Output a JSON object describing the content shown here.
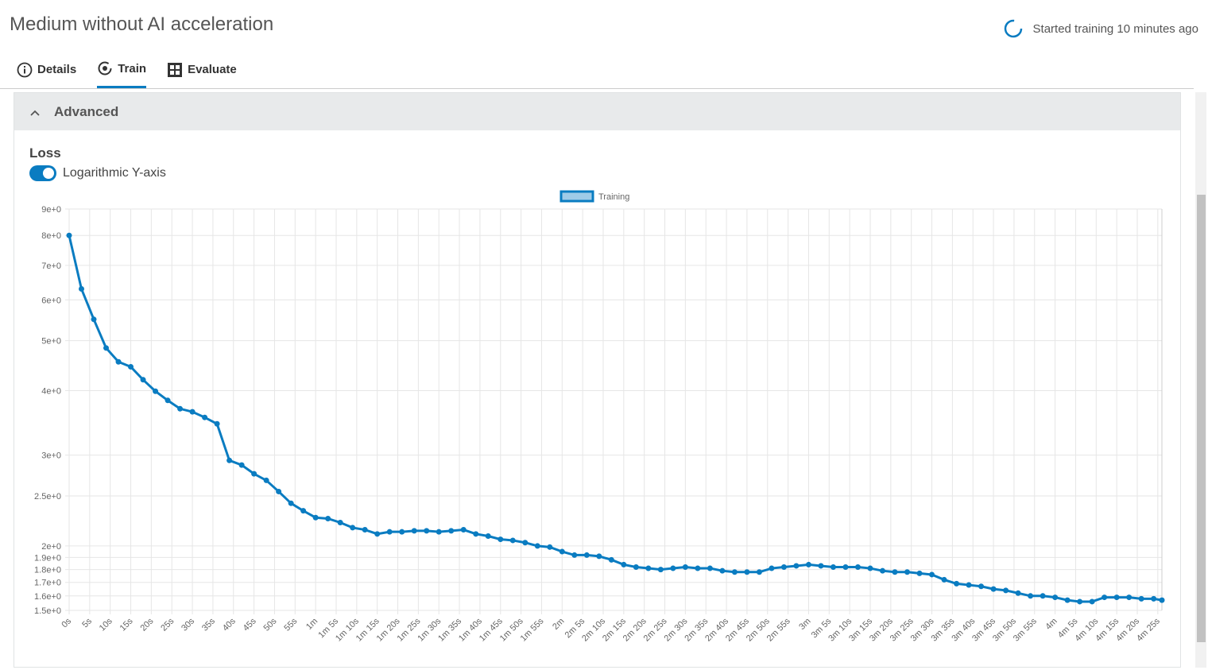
{
  "header": {
    "title": "Medium without AI acceleration",
    "status": "Started training 10 minutes ago"
  },
  "tabs": [
    "Details",
    "Train",
    "Evaluate"
  ],
  "section": {
    "title": "Advanced",
    "chart_title": "Loss",
    "toggle_label": "Logarithmic Y-axis"
  },
  "chart_data": {
    "type": "line",
    "log_y": true,
    "grid": true,
    "legend": "top",
    "series": [
      {
        "name": "Training",
        "color": "#0a7cc1",
        "values": [
          8.0,
          6.3,
          5.5,
          4.84,
          4.55,
          4.45,
          4.2,
          3.99,
          3.83,
          3.69,
          3.64,
          3.55,
          3.45,
          2.93,
          2.87,
          2.76,
          2.68,
          2.55,
          2.42,
          2.34,
          2.27,
          2.26,
          2.22,
          2.17,
          2.15,
          2.11,
          2.13,
          2.13,
          2.14,
          2.14,
          2.13,
          2.14,
          2.15,
          2.11,
          2.09,
          2.06,
          2.05,
          2.03,
          2.0,
          1.99,
          1.95,
          1.92,
          1.92,
          1.91,
          1.88,
          1.84,
          1.82,
          1.81,
          1.8,
          1.81,
          1.82,
          1.81,
          1.81,
          1.79,
          1.78,
          1.78,
          1.78,
          1.81,
          1.82,
          1.83,
          1.84,
          1.83,
          1.82,
          1.82,
          1.82,
          1.81,
          1.79,
          1.78,
          1.78,
          1.77,
          1.76,
          1.72,
          1.69,
          1.68,
          1.67,
          1.65,
          1.64,
          1.62,
          1.6,
          1.6,
          1.59,
          1.57,
          1.56,
          1.56,
          1.59,
          1.59,
          1.59,
          1.58,
          1.58,
          1.57
        ]
      }
    ],
    "x": [
      0,
      3,
      6,
      9,
      12,
      15,
      18,
      21,
      24,
      27,
      30,
      33,
      36,
      39,
      42,
      45,
      48,
      51,
      54,
      57,
      60,
      63,
      66,
      69,
      72,
      75,
      78,
      81,
      84,
      87,
      90,
      93,
      96,
      99,
      102,
      105,
      108,
      111,
      114,
      117,
      120,
      123,
      126,
      129,
      132,
      135,
      138,
      141,
      144,
      147,
      150,
      153,
      156,
      159,
      162,
      165,
      168,
      171,
      174,
      177,
      180,
      183,
      186,
      189,
      192,
      195,
      198,
      201,
      204,
      207,
      210,
      213,
      216,
      219,
      222,
      225,
      228,
      231,
      234,
      237,
      240,
      243,
      246,
      249,
      252,
      255,
      258,
      261,
      264,
      266
    ],
    "xlim": [
      0,
      266
    ],
    "xticks": [
      {
        "value": 0,
        "label": "0s"
      },
      {
        "value": 5,
        "label": "5s"
      },
      {
        "value": 10,
        "label": "10s"
      },
      {
        "value": 15,
        "label": "15s"
      },
      {
        "value": 20,
        "label": "20s"
      },
      {
        "value": 25,
        "label": "25s"
      },
      {
        "value": 30,
        "label": "30s"
      },
      {
        "value": 35,
        "label": "35s"
      },
      {
        "value": 40,
        "label": "40s"
      },
      {
        "value": 45,
        "label": "45s"
      },
      {
        "value": 50,
        "label": "50s"
      },
      {
        "value": 55,
        "label": "55s"
      },
      {
        "value": 60,
        "label": "1m"
      },
      {
        "value": 65,
        "label": "1m 5s"
      },
      {
        "value": 70,
        "label": "1m 10s"
      },
      {
        "value": 75,
        "label": "1m 15s"
      },
      {
        "value": 80,
        "label": "1m 20s"
      },
      {
        "value": 85,
        "label": "1m 25s"
      },
      {
        "value": 90,
        "label": "1m 30s"
      },
      {
        "value": 95,
        "label": "1m 35s"
      },
      {
        "value": 100,
        "label": "1m 40s"
      },
      {
        "value": 105,
        "label": "1m 45s"
      },
      {
        "value": 110,
        "label": "1m 50s"
      },
      {
        "value": 115,
        "label": "1m 55s"
      },
      {
        "value": 120,
        "label": "2m"
      },
      {
        "value": 125,
        "label": "2m 5s"
      },
      {
        "value": 130,
        "label": "2m 10s"
      },
      {
        "value": 135,
        "label": "2m 15s"
      },
      {
        "value": 140,
        "label": "2m 20s"
      },
      {
        "value": 145,
        "label": "2m 25s"
      },
      {
        "value": 150,
        "label": "2m 30s"
      },
      {
        "value": 155,
        "label": "2m 35s"
      },
      {
        "value": 160,
        "label": "2m 40s"
      },
      {
        "value": 165,
        "label": "2m 45s"
      },
      {
        "value": 170,
        "label": "2m 50s"
      },
      {
        "value": 175,
        "label": "2m 55s"
      },
      {
        "value": 180,
        "label": "3m"
      },
      {
        "value": 185,
        "label": "3m 5s"
      },
      {
        "value": 190,
        "label": "3m 10s"
      },
      {
        "value": 195,
        "label": "3m 15s"
      },
      {
        "value": 200,
        "label": "3m 20s"
      },
      {
        "value": 205,
        "label": "3m 25s"
      },
      {
        "value": 210,
        "label": "3m 30s"
      },
      {
        "value": 215,
        "label": "3m 35s"
      },
      {
        "value": 220,
        "label": "3m 40s"
      },
      {
        "value": 225,
        "label": "3m 45s"
      },
      {
        "value": 230,
        "label": "3m 50s"
      },
      {
        "value": 235,
        "label": "3m 55s"
      },
      {
        "value": 240,
        "label": "4m"
      },
      {
        "value": 245,
        "label": "4m 5s"
      },
      {
        "value": 250,
        "label": "4m 10s"
      },
      {
        "value": 255,
        "label": "4m 15s"
      },
      {
        "value": 260,
        "label": "4m 20s"
      },
      {
        "value": 265,
        "label": "4m 25s"
      }
    ],
    "ylim": [
      1.5,
      9
    ],
    "yticks": [
      {
        "value": 1.5,
        "label": "1.5e+0"
      },
      {
        "value": 1.6,
        "label": "1.6e+0"
      },
      {
        "value": 1.7,
        "label": "1.7e+0"
      },
      {
        "value": 1.8,
        "label": "1.8e+0"
      },
      {
        "value": 1.9,
        "label": "1.9e+0"
      },
      {
        "value": 2,
        "label": "2e+0"
      },
      {
        "value": 2.5,
        "label": "2.5e+0"
      },
      {
        "value": 3,
        "label": "3e+0"
      },
      {
        "value": 4,
        "label": "4e+0"
      },
      {
        "value": 5,
        "label": "5e+0"
      },
      {
        "value": 6,
        "label": "6e+0"
      },
      {
        "value": 7,
        "label": "7e+0"
      },
      {
        "value": 8,
        "label": "8e+0"
      },
      {
        "value": 9,
        "label": "9e+0"
      }
    ]
  }
}
